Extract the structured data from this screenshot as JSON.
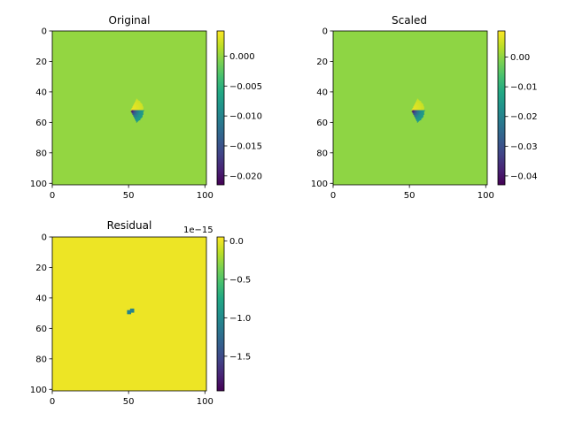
{
  "chart_data": [
    {
      "type": "heatmap",
      "title": "Original",
      "xlim": [
        0,
        101
      ],
      "ylim": [
        101,
        0
      ],
      "xticks": [
        "0",
        "50",
        "100"
      ],
      "yticks": [
        "0",
        "20",
        "40",
        "60",
        "80",
        "100"
      ],
      "background_value": 0.0,
      "feature": {
        "type": "dipole-wedge",
        "center": [
          51,
          52
        ],
        "min": -0.0215,
        "max": 0.004
      },
      "colorbar": {
        "range": [
          -0.0215,
          0.0042
        ],
        "ticks": [
          "0.000",
          "−0.005",
          "−0.010",
          "−0.015",
          "−0.020"
        ],
        "tick_values": [
          0.0,
          -0.005,
          -0.01,
          -0.015,
          -0.02
        ],
        "offset_text": ""
      }
    },
    {
      "type": "heatmap",
      "title": "Scaled",
      "xlim": [
        0,
        101
      ],
      "ylim": [
        101,
        0
      ],
      "xticks": [
        "0",
        "50",
        "100"
      ],
      "yticks": [
        "0",
        "20",
        "40",
        "60",
        "80",
        "100"
      ],
      "background_value": 0.0,
      "feature": {
        "type": "dipole-wedge",
        "center": [
          51,
          52
        ],
        "min": -0.043,
        "max": 0.008
      },
      "colorbar": {
        "range": [
          -0.043,
          0.0088
        ],
        "ticks": [
          "0.00",
          "−0.01",
          "−0.02",
          "−0.03",
          "−0.04"
        ],
        "tick_values": [
          0.0,
          -0.01,
          -0.02,
          -0.03,
          -0.04
        ],
        "offset_text": ""
      }
    },
    {
      "type": "heatmap",
      "title": "Residual",
      "xlim": [
        0,
        101
      ],
      "ylim": [
        101,
        0
      ],
      "xticks": [
        "0",
        "50",
        "100"
      ],
      "yticks": [
        "0",
        "20",
        "40",
        "60",
        "80",
        "100"
      ],
      "background_value": 0.0,
      "feature": {
        "type": "sparse-points",
        "points": [
          [
            50,
            49
          ],
          [
            52,
            48
          ]
        ],
        "min": -1.95e-15
      },
      "colorbar": {
        "range": [
          -1.95,
          0.05
        ],
        "ticks": [
          "0.0",
          "−0.5",
          "−1.0",
          "−1.5"
        ],
        "tick_values": [
          0.0,
          -0.5,
          -1.0,
          -1.5
        ],
        "offset_text": "1e−15"
      }
    }
  ]
}
